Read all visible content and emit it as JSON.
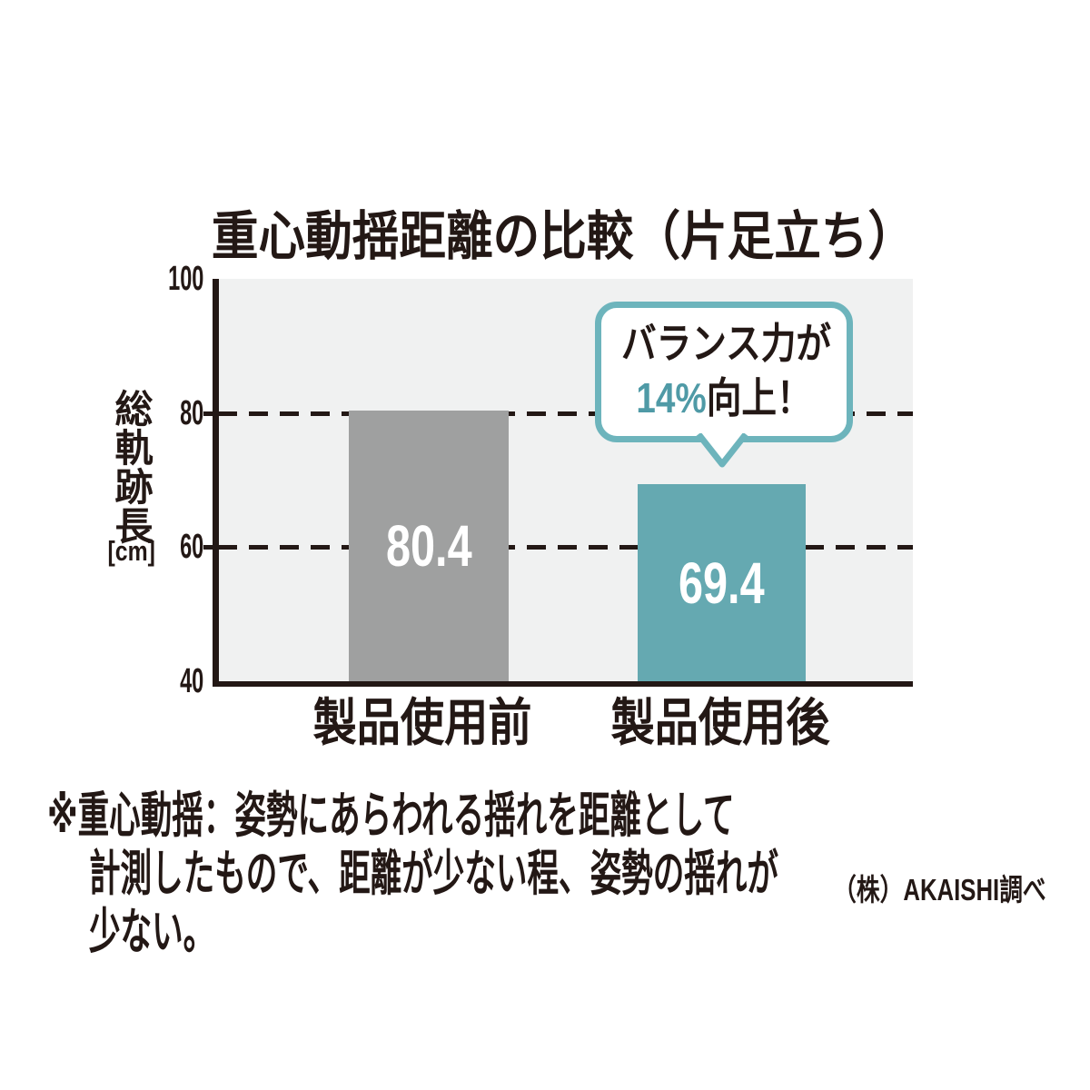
{
  "title": "重心動揺距離の比較（片足立ち）",
  "y_axis": {
    "label": "総軌跡長",
    "unit": "[cm]",
    "ticks": [
      "100",
      "80",
      "60",
      "40"
    ]
  },
  "x_axis": {
    "categories": [
      "製品使用前",
      "製品使用後"
    ]
  },
  "callout": {
    "line1": "バランス力が",
    "highlight": "14%",
    "suffix": "向上！"
  },
  "footnote_lines": [
    "※重心動揺：姿勢にあらわれる揺れを距離として",
    "計測したもので、距離が少ない程、姿勢の揺れが",
    "少ない。"
  ],
  "source": "（株）AKAISHI調べ",
  "colors": {
    "ink": "#231815",
    "plot_background": "#f0f1f1",
    "bar_before": "#9fa0a0",
    "bar_after": "#65a9b1",
    "callout_border": "#6db4bc",
    "highlight_text": "#4f9aa6",
    "bar_value_text": "#ffffff"
  },
  "chart_data": {
    "type": "bar",
    "title": "重心動揺距離の比較（片足立ち）",
    "categories": [
      "製品使用前",
      "製品使用後"
    ],
    "values": [
      80.4,
      69.4
    ],
    "bar_colors": [
      "#9fa0a0",
      "#65a9b1"
    ],
    "ylabel": "総軌跡長 [cm]",
    "ylim": [
      40,
      100
    ],
    "yticks": [
      100,
      80,
      60,
      40
    ],
    "gridlines": [
      80,
      60
    ],
    "grid_style": "dashed",
    "legend_position": "none",
    "annotation": "バランス力が14%向上！",
    "annotation_target": "製品使用後",
    "footnote": "※重心動揺：姿勢にあらわれる揺れを距離として計測したもので、距離が少ない程、姿勢の揺れが少ない。",
    "source": "（株）AKAISHI調べ"
  }
}
